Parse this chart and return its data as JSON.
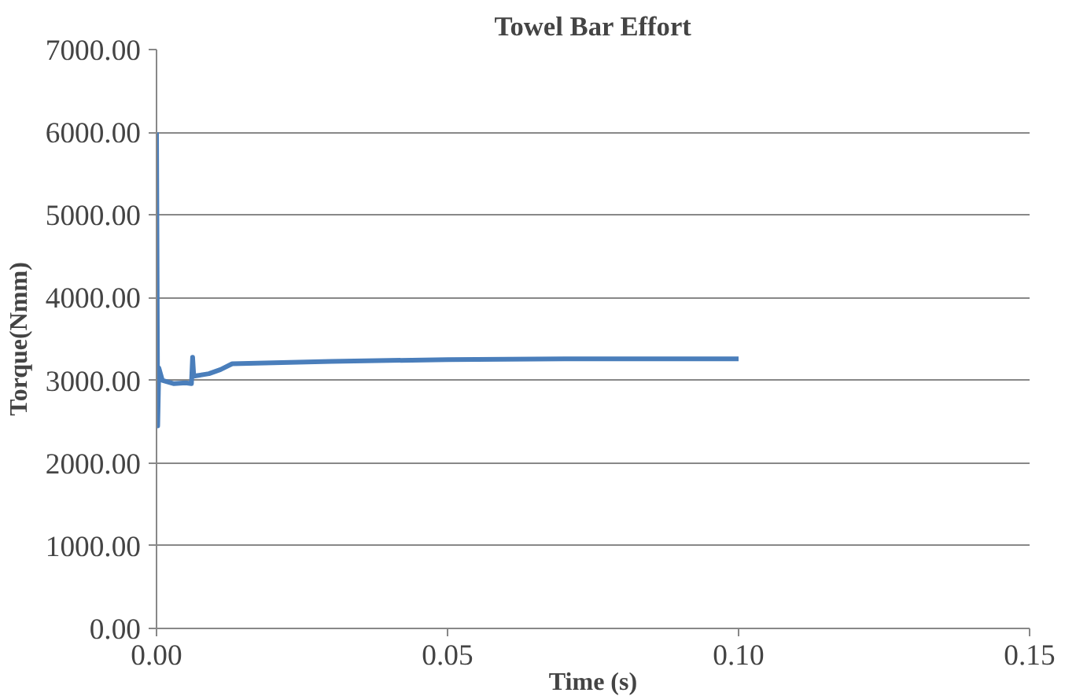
{
  "chart_data": {
    "type": "line",
    "title": "Towel Bar Effort",
    "xlabel": "Time (s)",
    "ylabel": "Torque(Nmm)",
    "xlim": [
      0,
      0.15
    ],
    "xticks": [
      {
        "value": 0,
        "label": "0.00"
      },
      {
        "value": 0.05,
        "label": "0.05"
      },
      {
        "value": 0.1,
        "label": "0.10"
      },
      {
        "value": 0.15,
        "label": "0.15"
      }
    ],
    "ylim": [
      0,
      7000
    ],
    "yticks": [
      {
        "value": 0,
        "label": "0.00"
      },
      {
        "value": 1000,
        "label": "1000.00"
      },
      {
        "value": 2000,
        "label": "2000.00"
      },
      {
        "value": 3000,
        "label": "3000.00"
      },
      {
        "value": 4000,
        "label": "4000.00"
      },
      {
        "value": 5000,
        "label": "5000.00"
      },
      {
        "value": 6000,
        "label": "6000.00"
      },
      {
        "value": 7000,
        "label": "7000.00"
      }
    ],
    "grid": "y",
    "series": [
      {
        "color": "#4a7ebb",
        "x": [
          0,
          0.0002,
          0.0004,
          0.001,
          0.003,
          0.005,
          0.006,
          0.0062,
          0.0064,
          0.009,
          0.011,
          0.013,
          0.03,
          0.05,
          0.07,
          0.1
        ],
        "values": [
          6000,
          2450,
          3150,
          3000,
          2960,
          2970,
          2960,
          3280,
          3050,
          3080,
          3130,
          3200,
          3230,
          3250,
          3260,
          3260
        ]
      }
    ]
  }
}
